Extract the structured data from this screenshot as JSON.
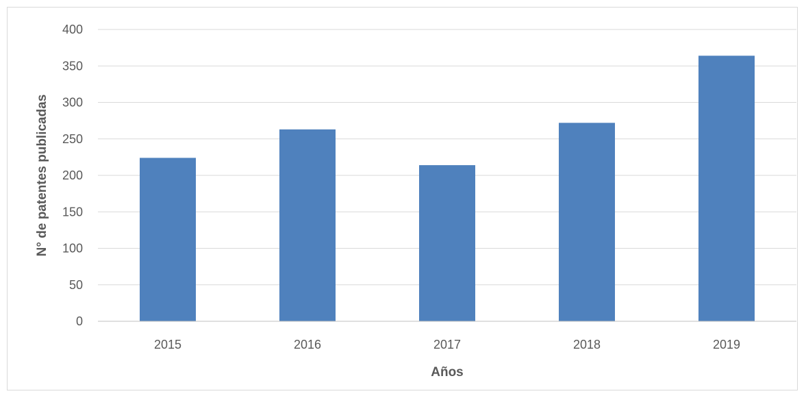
{
  "chart_data": {
    "type": "bar",
    "title": "",
    "xlabel": "Años",
    "ylabel": "N° de patentes publicadas",
    "categories": [
      "2015",
      "2016",
      "2017",
      "2018",
      "2019"
    ],
    "values": [
      224,
      263,
      214,
      272,
      364
    ],
    "ylim": [
      0,
      400
    ],
    "yticks": [
      0,
      50,
      100,
      150,
      200,
      250,
      300,
      350,
      400
    ],
    "grid": true,
    "legend": "none",
    "colors": {
      "bar": "#4f81bd",
      "grid": "#d9d9d9",
      "text": "#595959",
      "axis": "#bfbfbf"
    }
  }
}
